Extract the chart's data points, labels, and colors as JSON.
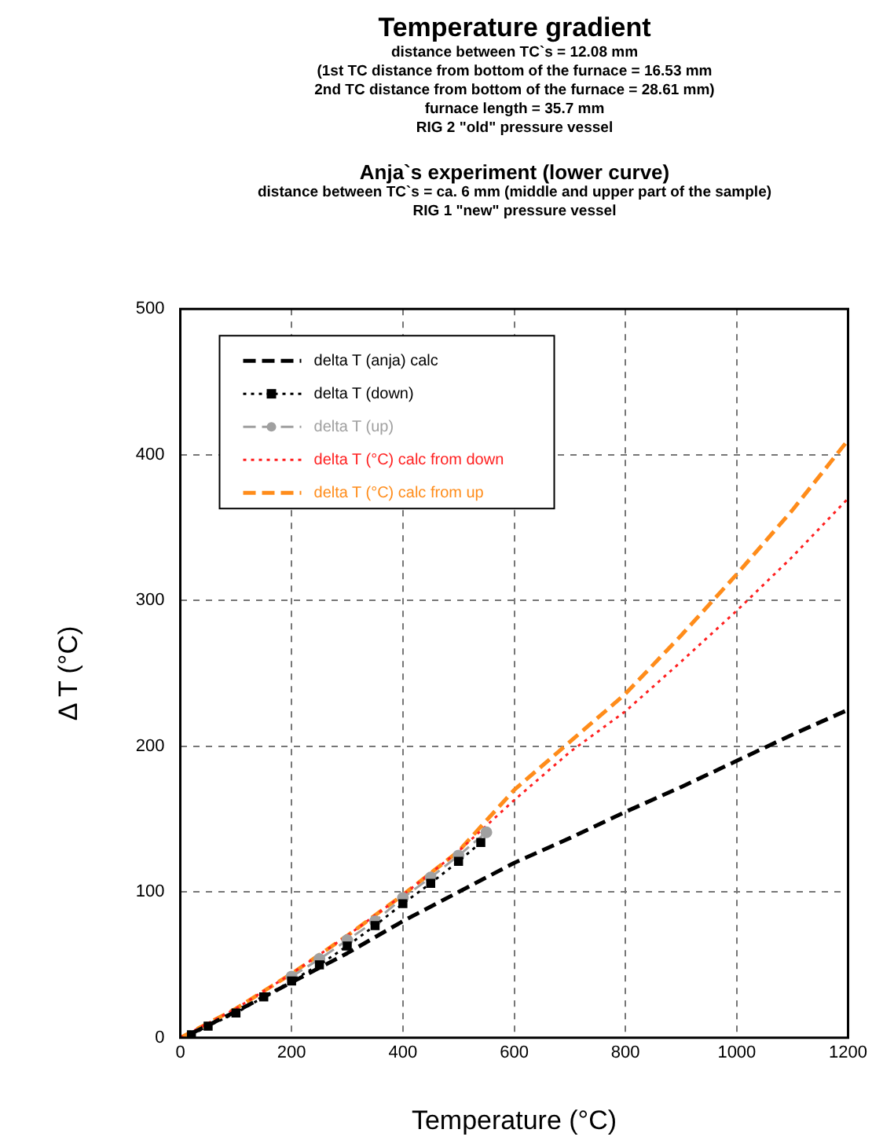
{
  "chart_data": {
    "type": "line",
    "title": "Temperature gradient",
    "subtitle": "distance between TC`s = 12.08 mm\n(1st TC distance from bottom of the furnace = 16.53 mm\n2nd TC distance from bottom of the furnace = 28.61 mm)\nfurnace length = 35.7 mm\nRIG 2 \"old\" pressure vessel",
    "annotations": [
      "Anja`s experiment (lower curve)",
      "distance between TC`s = ca. 6 mm (middle and upper part of the sample)",
      "RIG 1 \"new\" pressure vessel"
    ],
    "xlabel": "Temperature (°C)",
    "ylabel": "Δ T (°C)",
    "xlim": [
      0,
      1200
    ],
    "xticks": [
      0,
      200,
      400,
      600,
      800,
      1000,
      1200
    ],
    "ylim": [
      0,
      500
    ],
    "yticks": [
      0,
      100,
      200,
      300,
      400,
      500
    ],
    "grid": true,
    "legend": "top left",
    "series": [
      {
        "name": "delta T (anja) calc",
        "color": "#000000",
        "line_style": "dashed",
        "marker": "none",
        "x": [
          20,
          100,
          200,
          300,
          400,
          500,
          600,
          700,
          800,
          900,
          1000,
          1100,
          1200
        ],
        "values": [
          3,
          18,
          38,
          58,
          80,
          100,
          120,
          137,
          155,
          172,
          190,
          208,
          225
        ]
      },
      {
        "name": "delta T (down)",
        "color": "#000000",
        "line_style": "dotted",
        "marker": "square",
        "x": [
          20,
          50,
          100,
          150,
          200,
          250,
          300,
          350,
          400,
          450,
          500,
          540
        ],
        "values": [
          2,
          8,
          17,
          28,
          39,
          50,
          63,
          77,
          92,
          106,
          121,
          134
        ]
      },
      {
        "name": "delta T (up)",
        "color": "#a0a0a0",
        "line_style": "dashed",
        "marker": "circle",
        "x": [
          200,
          250,
          300,
          350,
          400,
          450,
          500,
          550
        ],
        "values": [
          42,
          54,
          67,
          80,
          96,
          110,
          125,
          141
        ]
      },
      {
        "name": "delta T (°C) calc from down",
        "color": "#ff2020",
        "line_style": "dotted",
        "marker": "none",
        "x": [
          0,
          100,
          200,
          300,
          400,
          500,
          600,
          700,
          800,
          900,
          1000,
          1100,
          1200
        ],
        "values": [
          0,
          20,
          44,
          70,
          98,
          128,
          163,
          196,
          224,
          258,
          293,
          330,
          370
        ]
      },
      {
        "name": "delta T (°C) calc from up",
        "color": "#ff8c1a",
        "line_style": "dashed",
        "marker": "none",
        "x": [
          0,
          100,
          200,
          300,
          400,
          500,
          600,
          700,
          800,
          900,
          1000,
          1100,
          1200
        ],
        "values": [
          0,
          20,
          44,
          70,
          98,
          128,
          170,
          203,
          236,
          276,
          318,
          362,
          410
        ]
      }
    ]
  }
}
